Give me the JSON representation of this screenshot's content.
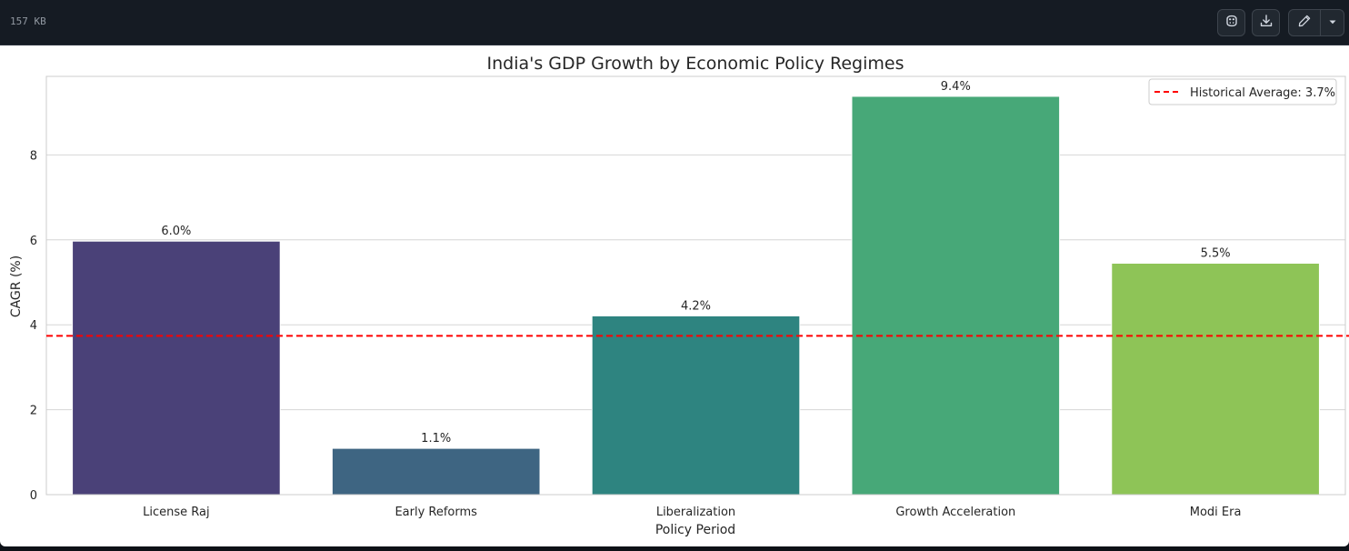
{
  "header": {
    "file_size": "157 KB",
    "buttons": {
      "copilot_icon": "copilot-icon",
      "download_icon": "download-icon",
      "edit_icon": "pencil-icon",
      "dropdown_icon": "triangle-down-icon"
    }
  },
  "chart_data": {
    "type": "bar",
    "title": "India's GDP Growth by Economic Policy Regimes",
    "xlabel": "Policy Period",
    "ylabel": "CAGR (%)",
    "categories": [
      "License Raj",
      "Early Reforms",
      "Liberalization",
      "Growth Acceleration",
      "Modi Era"
    ],
    "values": [
      5.97,
      1.09,
      4.21,
      9.38,
      5.45
    ],
    "value_labels": [
      "6.0%",
      "1.1%",
      "4.2%",
      "9.4%",
      "5.5%"
    ],
    "colors": [
      "#4a4178",
      "#3e6582",
      "#2e8480",
      "#47a878",
      "#8ec457"
    ],
    "yticks": [
      0,
      2,
      4,
      6,
      8
    ],
    "ylim": [
      0,
      9.85
    ],
    "grid": true,
    "reference_line": {
      "value": 3.74,
      "label": "Historical Average: 3.7%",
      "color": "#ff0000",
      "style": "dashed"
    },
    "legend_position": "top-right"
  }
}
